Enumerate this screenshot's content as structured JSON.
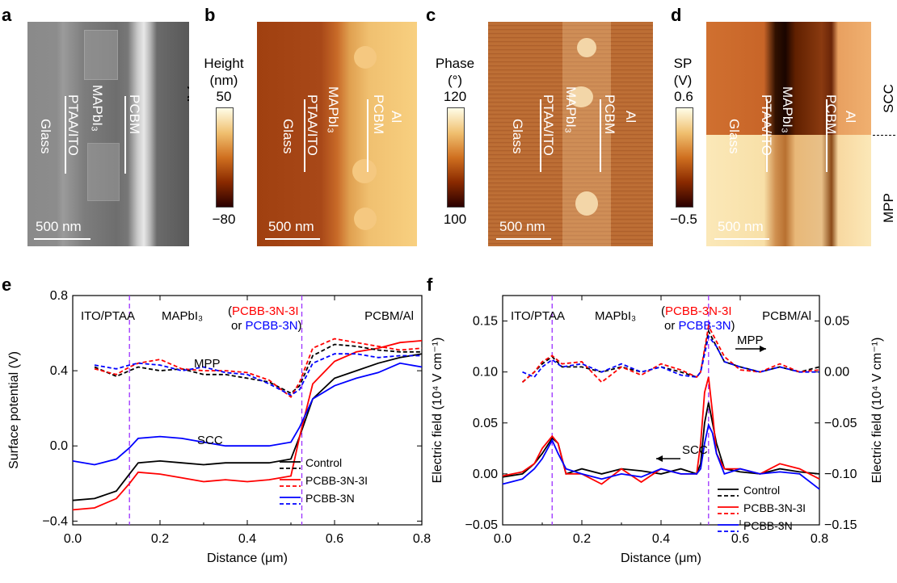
{
  "panels": {
    "a": {
      "letter": "a",
      "scale": "500 nm",
      "labels": [
        "Glass",
        "PTAA/ITO",
        "MAPbI₃",
        "PCBM",
        "Al"
      ]
    },
    "b": {
      "letter": "b",
      "scale": "500 nm",
      "cb_title": [
        "Height",
        "(nm)"
      ],
      "cb_max": "50",
      "cb_min": "−80",
      "labels": [
        "Glass",
        "PTAA/ITO",
        "MAPbI₃",
        "PCBM",
        "Al"
      ]
    },
    "c": {
      "letter": "c",
      "scale": "500 nm",
      "cb_title": [
        "Phase",
        "(°)"
      ],
      "cb_max": "120",
      "cb_min": "100",
      "labels": [
        "Glass",
        "PTAA/ITO",
        "MAPbI₃",
        "PCBM",
        "Al"
      ]
    },
    "d": {
      "letter": "d",
      "scale": "500 nm",
      "cb_title": [
        "SP",
        "(V)"
      ],
      "cb_max": "0.6",
      "cb_min": "−0.5",
      "labels": [
        "Glass",
        "PTAA/ITO",
        "MAPbI₃",
        "PCBM",
        "Al"
      ],
      "top_label": "SCC",
      "bottom_label": "MPP"
    },
    "e": {
      "letter": "e"
    },
    "f": {
      "letter": "f"
    }
  },
  "chart_data": [
    {
      "panel": "e",
      "type": "line",
      "xlabel": "Distance (μm)",
      "ylabel": "Surface potential (V)",
      "xlim": [
        0.0,
        0.8
      ],
      "ylim": [
        -0.42,
        0.8
      ],
      "xticks": [
        "0.0",
        "0.2",
        "0.4",
        "0.6",
        "0.8"
      ],
      "yticks": [
        "−0.4",
        "0.0",
        "0.4",
        "0.8"
      ],
      "ytick_values": [
        -0.4,
        0.0,
        0.4,
        0.8
      ],
      "xtick_values": [
        0.0,
        0.2,
        0.4,
        0.6,
        0.8
      ],
      "vlines": [
        0.13,
        0.525
      ],
      "region_labels": [
        "ITO/PTAA",
        "MAPbI₃",
        "PCBM/Al"
      ],
      "interlayer_label": {
        "open": "(",
        "red": "PCBB-3N-3I",
        "mid": "or ",
        "blue": "PCBB-3N",
        "close": ")"
      },
      "annotations": [
        "MPP",
        "SCC"
      ],
      "legend": [
        "Control",
        "PCBB-3N-3I",
        "PCBB-3N"
      ],
      "series": [
        {
          "name": "Control",
          "style": "solid",
          "color": "#000000",
          "x": [
            0.0,
            0.05,
            0.1,
            0.13,
            0.15,
            0.2,
            0.25,
            0.3,
            0.35,
            0.4,
            0.45,
            0.5,
            0.52,
            0.55,
            0.6,
            0.65,
            0.7,
            0.75,
            0.8
          ],
          "y": [
            -0.29,
            -0.28,
            -0.24,
            -0.15,
            -0.09,
            -0.08,
            -0.09,
            -0.1,
            -0.09,
            -0.09,
            -0.09,
            -0.07,
            0.05,
            0.25,
            0.36,
            0.4,
            0.44,
            0.47,
            0.49
          ]
        },
        {
          "name": "PCBB-3N-3I",
          "style": "solid",
          "color": "#ff0000",
          "x": [
            0.0,
            0.05,
            0.1,
            0.13,
            0.15,
            0.2,
            0.25,
            0.3,
            0.35,
            0.4,
            0.45,
            0.5,
            0.52,
            0.55,
            0.6,
            0.65,
            0.7,
            0.75,
            0.8
          ],
          "y": [
            -0.34,
            -0.33,
            -0.28,
            -0.2,
            -0.14,
            -0.15,
            -0.17,
            -0.19,
            -0.18,
            -0.19,
            -0.18,
            -0.16,
            0.05,
            0.33,
            0.45,
            0.5,
            0.52,
            0.55,
            0.56
          ]
        },
        {
          "name": "PCBB-3N",
          "style": "solid",
          "color": "#0000ff",
          "x": [
            0.0,
            0.05,
            0.1,
            0.13,
            0.15,
            0.2,
            0.25,
            0.3,
            0.35,
            0.4,
            0.45,
            0.5,
            0.52,
            0.55,
            0.6,
            0.65,
            0.7,
            0.75,
            0.8
          ],
          "y": [
            -0.08,
            -0.1,
            -0.07,
            -0.01,
            0.04,
            0.05,
            0.04,
            0.02,
            0.0,
            0.0,
            0.0,
            0.02,
            0.1,
            0.25,
            0.32,
            0.36,
            0.39,
            0.44,
            0.42
          ]
        },
        {
          "name": "Control MPP",
          "style": "dashed",
          "color": "#000000",
          "x": [
            0.05,
            0.1,
            0.13,
            0.15,
            0.2,
            0.25,
            0.3,
            0.35,
            0.4,
            0.45,
            0.5,
            0.52,
            0.55,
            0.6,
            0.65,
            0.7,
            0.75,
            0.8
          ],
          "y": [
            0.42,
            0.37,
            0.4,
            0.42,
            0.4,
            0.41,
            0.38,
            0.38,
            0.36,
            0.34,
            0.28,
            0.32,
            0.48,
            0.54,
            0.53,
            0.51,
            0.5,
            0.5
          ]
        },
        {
          "name": "PCBB-3N-3I MPP",
          "style": "dashed",
          "color": "#ff0000",
          "x": [
            0.05,
            0.1,
            0.13,
            0.15,
            0.2,
            0.25,
            0.3,
            0.35,
            0.4,
            0.45,
            0.5,
            0.52,
            0.55,
            0.6,
            0.65,
            0.7,
            0.75,
            0.8
          ],
          "y": [
            0.41,
            0.38,
            0.42,
            0.44,
            0.46,
            0.41,
            0.4,
            0.4,
            0.39,
            0.35,
            0.26,
            0.34,
            0.52,
            0.57,
            0.55,
            0.53,
            0.51,
            0.52
          ]
        },
        {
          "name": "PCBB-3N MPP",
          "style": "dashed",
          "color": "#0000ff",
          "x": [
            0.05,
            0.1,
            0.13,
            0.15,
            0.2,
            0.25,
            0.3,
            0.35,
            0.4,
            0.45,
            0.5,
            0.52,
            0.55,
            0.6,
            0.65,
            0.7,
            0.75,
            0.8
          ],
          "y": [
            0.43,
            0.41,
            0.43,
            0.44,
            0.43,
            0.4,
            0.42,
            0.39,
            0.38,
            0.33,
            0.27,
            0.3,
            0.44,
            0.49,
            0.49,
            0.47,
            0.48,
            0.48
          ]
        }
      ]
    },
    {
      "panel": "f",
      "type": "line",
      "xlabel": "Distance (μm)",
      "ylabel": "Electric field (10⁴ V cm⁻¹)",
      "ylabel_right": "Electric field (10⁴ V cm⁻¹)",
      "xlim": [
        0.0,
        0.8
      ],
      "ylim": [
        -0.05,
        0.175
      ],
      "ylim_right": [
        -0.15,
        0.075
      ],
      "xticks": [
        "0.0",
        "0.2",
        "0.4",
        "0.6",
        "0.8"
      ],
      "xtick_values": [
        0.0,
        0.2,
        0.4,
        0.6,
        0.8
      ],
      "yticks": [
        "−0.05",
        "0.00",
        "0.05",
        "0.10",
        "0.15"
      ],
      "ytick_values": [
        -0.05,
        0.0,
        0.05,
        0.1,
        0.15
      ],
      "yticks_right": [
        "−0.15",
        "−0.10",
        "−0.05",
        "0.00",
        "0.05"
      ],
      "ytick_values_right": [
        -0.15,
        -0.1,
        -0.05,
        0.0,
        0.05
      ],
      "vlines": [
        0.125,
        0.52
      ],
      "region_labels": [
        "ITO/PTAA",
        "MAPbI₃",
        "PCBM/Al"
      ],
      "interlayer_label": {
        "open": "(",
        "red": "PCBB-3N-3I",
        "mid": "or ",
        "blue": "PCBB-3N",
        "close": ")"
      },
      "annotations": [
        "MPP",
        "SCC"
      ],
      "legend": [
        "Control",
        "PCBB-3N-3I",
        "PCBB-3N"
      ],
      "series": [
        {
          "name": "Control",
          "axis": "left",
          "style": "solid",
          "color": "#000000",
          "x": [
            0.0,
            0.05,
            0.08,
            0.1,
            0.125,
            0.14,
            0.16,
            0.2,
            0.25,
            0.3,
            0.35,
            0.4,
            0.45,
            0.49,
            0.5,
            0.51,
            0.52,
            0.53,
            0.54,
            0.56,
            0.6,
            0.65,
            0.7,
            0.75,
            0.8
          ],
          "y": [
            -0.003,
            0.0,
            0.01,
            0.02,
            0.035,
            0.03,
            0.0,
            0.005,
            0.0,
            0.005,
            0.003,
            0.0,
            0.005,
            0.0,
            0.01,
            0.05,
            0.07,
            0.05,
            0.03,
            0.005,
            0.002,
            0.0,
            0.005,
            0.002,
            0.0
          ]
        },
        {
          "name": "PCBB-3N-3I",
          "axis": "left",
          "style": "solid",
          "color": "#ff0000",
          "x": [
            0.0,
            0.05,
            0.08,
            0.1,
            0.125,
            0.14,
            0.16,
            0.2,
            0.25,
            0.3,
            0.35,
            0.4,
            0.45,
            0.49,
            0.5,
            0.51,
            0.52,
            0.53,
            0.54,
            0.56,
            0.6,
            0.65,
            0.7,
            0.75,
            0.8
          ],
          "y": [
            -0.002,
            0.002,
            0.01,
            0.025,
            0.037,
            0.03,
            0.0,
            0.0,
            -0.01,
            0.005,
            -0.008,
            0.005,
            0.0,
            0.0,
            0.03,
            0.08,
            0.095,
            0.06,
            0.02,
            0.005,
            0.005,
            0.0,
            0.01,
            0.005,
            -0.005
          ]
        },
        {
          "name": "PCBB-3N",
          "axis": "left",
          "style": "solid",
          "color": "#0000ff",
          "x": [
            0.0,
            0.05,
            0.08,
            0.1,
            0.125,
            0.14,
            0.16,
            0.2,
            0.25,
            0.3,
            0.35,
            0.4,
            0.45,
            0.49,
            0.5,
            0.51,
            0.52,
            0.53,
            0.54,
            0.56,
            0.6,
            0.65,
            0.7,
            0.75,
            0.8
          ],
          "y": [
            -0.01,
            -0.005,
            0.005,
            0.015,
            0.033,
            0.02,
            0.005,
            0.0,
            -0.005,
            0.0,
            -0.003,
            0.005,
            0.0,
            0.0,
            0.005,
            0.03,
            0.048,
            0.04,
            0.02,
            0.0,
            0.005,
            0.0,
            0.002,
            0.0,
            -0.015
          ]
        },
        {
          "name": "Control MPP",
          "axis": "right",
          "style": "dashed",
          "color": "#000000",
          "x": [
            0.05,
            0.08,
            0.1,
            0.125,
            0.15,
            0.2,
            0.25,
            0.3,
            0.35,
            0.4,
            0.45,
            0.49,
            0.5,
            0.52,
            0.54,
            0.56,
            0.6,
            0.65,
            0.7,
            0.75,
            0.8
          ],
          "y": [
            -0.01,
            0.0,
            0.008,
            0.015,
            0.005,
            0.005,
            0.0,
            0.005,
            0.0,
            0.005,
            0.0,
            -0.005,
            0.0,
            0.04,
            0.025,
            0.01,
            0.005,
            0.0,
            0.005,
            0.0,
            0.005
          ]
        },
        {
          "name": "PCBB-3N-3I MPP",
          "axis": "right",
          "style": "dashed",
          "color": "#ff0000",
          "x": [
            0.05,
            0.08,
            0.1,
            0.125,
            0.15,
            0.2,
            0.25,
            0.3,
            0.35,
            0.4,
            0.45,
            0.49,
            0.5,
            0.52,
            0.54,
            0.56,
            0.6,
            0.65,
            0.7,
            0.75,
            0.8
          ],
          "y": [
            -0.01,
            0.0,
            0.01,
            0.016,
            0.008,
            0.01,
            -0.01,
            0.005,
            -0.003,
            0.008,
            0.002,
            -0.005,
            0.0,
            0.045,
            0.03,
            0.015,
            0.002,
            0.0,
            0.008,
            0.0,
            0.002
          ]
        },
        {
          "name": "PCBB-3N MPP",
          "axis": "right",
          "style": "dashed",
          "color": "#0000ff",
          "x": [
            0.05,
            0.08,
            0.1,
            0.125,
            0.15,
            0.2,
            0.25,
            0.3,
            0.35,
            0.4,
            0.45,
            0.49,
            0.5,
            0.52,
            0.54,
            0.56,
            0.6,
            0.65,
            0.7,
            0.75,
            0.8
          ],
          "y": [
            0.0,
            -0.005,
            0.005,
            0.012,
            0.005,
            0.008,
            0.0,
            0.008,
            0.0,
            0.005,
            -0.003,
            -0.005,
            0.0,
            0.035,
            0.025,
            0.01,
            0.005,
            0.0,
            0.005,
            0.0,
            0.0
          ]
        }
      ]
    }
  ],
  "colors": {
    "control": "#000000",
    "pcbb_3n_3i": "#ff0000",
    "pcbb_3n": "#0000ff",
    "marker": "#9b30ff"
  }
}
